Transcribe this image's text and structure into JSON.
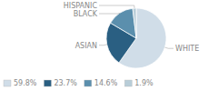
{
  "chart_data": {
    "type": "pie",
    "categories": [
      "WHITE",
      "ASIAN",
      "BLACK",
      "HISPANIC"
    ],
    "values": [
      59.8,
      23.7,
      14.6,
      1.9
    ],
    "value_labels": [
      "59.8%",
      "23.7%",
      "14.6%",
      "1.9%"
    ],
    "colors": [
      "#d0dde8",
      "#2a5f82",
      "#5b8fad",
      "#b8cdd8"
    ],
    "legend": "bottom"
  }
}
